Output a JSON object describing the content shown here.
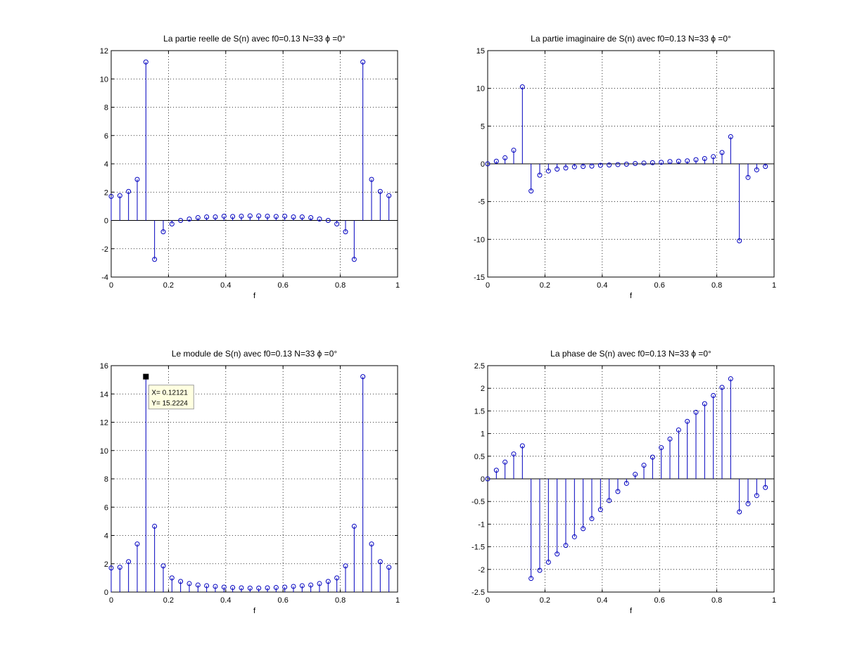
{
  "figure": {
    "background": "#ffffff",
    "stem_color": "#0000bf",
    "axis_color": "#000000",
    "grid_color": "#000000"
  },
  "chart_data": [
    {
      "type": "stem",
      "title": "La partie reelle de S(n) avec f0=0.13 N=33 ϕ =0°",
      "xlabel": "f",
      "ylabel": "",
      "xlim": [
        0,
        1
      ],
      "ylim": [
        -4,
        12
      ],
      "xticks": [
        "0",
        "0.2",
        "0.4",
        "0.6",
        "0.8",
        "1"
      ],
      "xtick_values": [
        0,
        0.2,
        0.4,
        0.6,
        0.8,
        1
      ],
      "yticks": [
        "-4",
        "-2",
        "0",
        "2",
        "4",
        "6",
        "8",
        "10",
        "12"
      ],
      "ytick_values": [
        -4,
        -2,
        0,
        2,
        4,
        6,
        8,
        10,
        12
      ],
      "grid": true,
      "x": [
        0,
        0.0303,
        0.0606,
        0.0909,
        0.1212,
        0.1515,
        0.1818,
        0.2121,
        0.2424,
        0.2727,
        0.303,
        0.3333,
        0.3636,
        0.3939,
        0.4242,
        0.4545,
        0.4848,
        0.5152,
        0.5455,
        0.5758,
        0.6061,
        0.6364,
        0.6667,
        0.697,
        0.7273,
        0.7576,
        0.7879,
        0.8182,
        0.8485,
        0.8788,
        0.9091,
        0.9394,
        0.9697
      ],
      "y": [
        1.7,
        1.75,
        2.05,
        2.9,
        11.2,
        -2.75,
        -0.8,
        -0.25,
        0.0,
        0.1,
        0.2,
        0.25,
        0.25,
        0.3,
        0.28,
        0.3,
        0.32,
        0.32,
        0.3,
        0.28,
        0.3,
        0.25,
        0.25,
        0.2,
        0.1,
        0.0,
        -0.25,
        -0.8,
        -2.75,
        11.2,
        2.9,
        2.05,
        1.75
      ]
    },
    {
      "type": "stem",
      "title": "La partie imaginaire de S(n) avec f0=0.13 N=33 ϕ =0°",
      "xlabel": "f",
      "ylabel": "",
      "xlim": [
        0,
        1
      ],
      "ylim": [
        -15,
        15
      ],
      "xticks": [
        "0",
        "0.2",
        "0.4",
        "0.6",
        "0.8",
        "1"
      ],
      "xtick_values": [
        0,
        0.2,
        0.4,
        0.6,
        0.8,
        1
      ],
      "yticks": [
        "-15",
        "-10",
        "-5",
        "0",
        "5",
        "10",
        "15"
      ],
      "ytick_values": [
        -15,
        -10,
        -5,
        0,
        5,
        10,
        15
      ],
      "grid": true,
      "x": [
        0,
        0.0303,
        0.0606,
        0.0909,
        0.1212,
        0.1515,
        0.1818,
        0.2121,
        0.2424,
        0.2727,
        0.303,
        0.3333,
        0.3636,
        0.3939,
        0.4242,
        0.4545,
        0.4848,
        0.5152,
        0.5455,
        0.5758,
        0.6061,
        0.6364,
        0.6667,
        0.697,
        0.7273,
        0.7576,
        0.7879,
        0.8182,
        0.8485,
        0.8788,
        0.9091,
        0.9394,
        0.9697
      ],
      "y": [
        0,
        0.35,
        0.8,
        1.8,
        10.2,
        -3.6,
        -1.5,
        -0.95,
        -0.7,
        -0.55,
        -0.4,
        -0.35,
        -0.3,
        -0.2,
        -0.15,
        -0.1,
        -0.05,
        0.05,
        0.1,
        0.15,
        0.2,
        0.3,
        0.35,
        0.4,
        0.55,
        0.7,
        0.95,
        1.5,
        3.6,
        -10.2,
        -1.8,
        -0.8,
        -0.35
      ]
    },
    {
      "type": "stem",
      "title": "Le module de S(n) avec f0=0.13 N=33 ϕ =0°",
      "xlabel": "f",
      "ylabel": "",
      "xlim": [
        0,
        1
      ],
      "ylim": [
        0,
        16
      ],
      "xticks": [
        "0",
        "0.2",
        "0.4",
        "0.6",
        "0.8",
        "1"
      ],
      "xtick_values": [
        0,
        0.2,
        0.4,
        0.6,
        0.8,
        1
      ],
      "yticks": [
        "0",
        "2",
        "4",
        "6",
        "8",
        "10",
        "12",
        "14",
        "16"
      ],
      "ytick_values": [
        0,
        2,
        4,
        6,
        8,
        10,
        12,
        14,
        16
      ],
      "grid": true,
      "x": [
        0,
        0.0303,
        0.0606,
        0.0909,
        0.1212,
        0.1515,
        0.1818,
        0.2121,
        0.2424,
        0.2727,
        0.303,
        0.3333,
        0.3636,
        0.3939,
        0.4242,
        0.4545,
        0.4848,
        0.5152,
        0.5455,
        0.5758,
        0.6061,
        0.6364,
        0.6667,
        0.697,
        0.7273,
        0.7576,
        0.7879,
        0.8182,
        0.8485,
        0.8788,
        0.9091,
        0.9394,
        0.9697
      ],
      "y": [
        1.7,
        1.75,
        2.15,
        3.4,
        15.2224,
        4.65,
        1.85,
        1.0,
        0.75,
        0.6,
        0.5,
        0.45,
        0.4,
        0.35,
        0.32,
        0.3,
        0.28,
        0.28,
        0.3,
        0.32,
        0.35,
        0.4,
        0.45,
        0.5,
        0.6,
        0.75,
        1.0,
        1.85,
        4.65,
        15.2224,
        3.4,
        2.15,
        1.75
      ],
      "datatip": {
        "x_value": 0.12121,
        "y_value": 15.2224,
        "x_text": "X= 0.12121",
        "y_text": "Y= 15.2224",
        "background": "#ffffe0",
        "border": "#a0a0a0"
      }
    },
    {
      "type": "stem",
      "title": "La phase de S(n) avec f0=0.13 N=33 ϕ =0°",
      "xlabel": "f",
      "ylabel": "",
      "xlim": [
        0,
        1
      ],
      "ylim": [
        -2.5,
        2.5
      ],
      "xticks": [
        "0",
        "0.2",
        "0.4",
        "0.6",
        "0.8",
        "1"
      ],
      "xtick_values": [
        0,
        0.2,
        0.4,
        0.6,
        0.8,
        1
      ],
      "yticks": [
        "-2.5",
        "-2",
        "-1.5",
        "-1",
        "-0.5",
        "0",
        "0.5",
        "1",
        "1.5",
        "2",
        "2.5"
      ],
      "ytick_values": [
        -2.5,
        -2,
        -1.5,
        -1,
        -0.5,
        0,
        0.5,
        1,
        1.5,
        2,
        2.5
      ],
      "grid": true,
      "x": [
        0,
        0.0303,
        0.0606,
        0.0909,
        0.1212,
        0.1515,
        0.1818,
        0.2121,
        0.2424,
        0.2727,
        0.303,
        0.3333,
        0.3636,
        0.3939,
        0.4242,
        0.4545,
        0.4848,
        0.5152,
        0.5455,
        0.5758,
        0.6061,
        0.6364,
        0.6667,
        0.697,
        0.7273,
        0.7576,
        0.7879,
        0.8182,
        0.8485,
        0.8788,
        0.9091,
        0.9394,
        0.9697
      ],
      "y": [
        0,
        0.19,
        0.37,
        0.55,
        0.73,
        -2.2,
        -2.02,
        -1.84,
        -1.66,
        -1.47,
        -1.28,
        -1.1,
        -0.88,
        -0.68,
        -0.48,
        -0.28,
        -0.1,
        0.1,
        0.3,
        0.48,
        0.69,
        0.88,
        1.08,
        1.27,
        1.47,
        1.66,
        1.84,
        2.02,
        2.21,
        -0.73,
        -0.55,
        -0.37,
        -0.19
      ]
    }
  ]
}
